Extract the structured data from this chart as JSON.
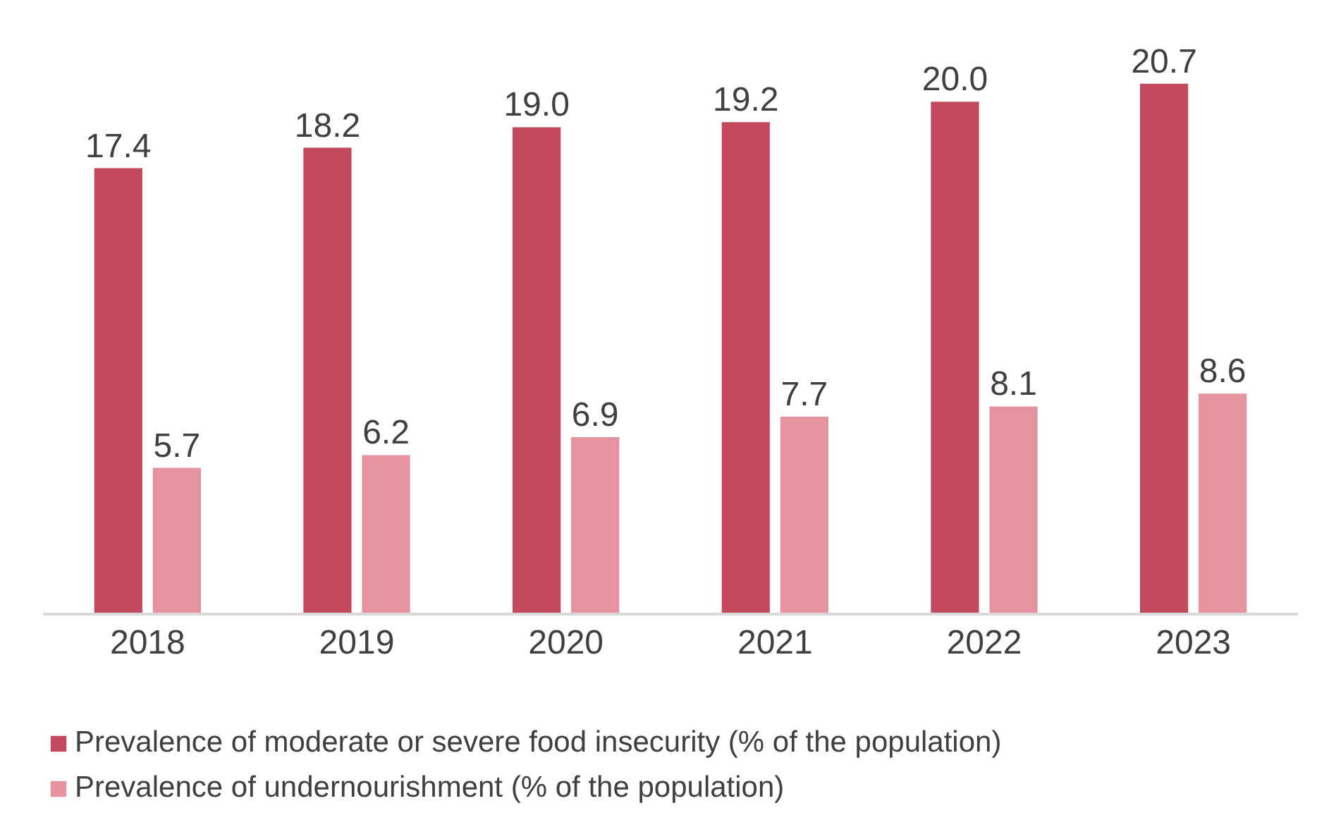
{
  "chart_data": {
    "type": "bar",
    "categories": [
      "2018",
      "2019",
      "2020",
      "2021",
      "2022",
      "2023"
    ],
    "series": [
      {
        "name": "Prevalence of moderate or severe food insecurity (% of the population)",
        "color": "#c3495e",
        "values": [
          17.4,
          18.2,
          19.0,
          19.2,
          20.0,
          20.7
        ],
        "value_labels": [
          "17.4",
          "18.2",
          "19.0",
          "19.2",
          "20.0",
          "20.7"
        ]
      },
      {
        "name": "Prevalence of undernourishment (% of the population)",
        "color": "#e5939f",
        "values": [
          5.7,
          6.2,
          6.9,
          7.7,
          8.1,
          8.6
        ],
        "value_labels": [
          "5.7",
          "6.2",
          "6.9",
          "7.7",
          "8.1",
          "8.6"
        ]
      }
    ],
    "legend": "bottom",
    "tick_labels": "x"
  }
}
